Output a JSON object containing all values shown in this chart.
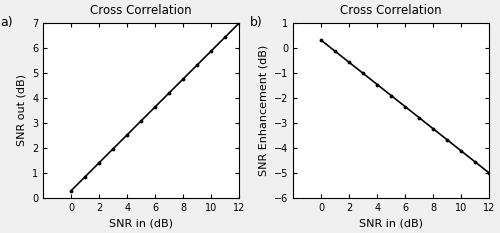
{
  "title": "Cross Correlation",
  "xlabel": "SNR in (dB)",
  "ylabel_a": "SNR out (dB)",
  "ylabel_b": "SNR Enhancement (dB)",
  "label_a": "a)",
  "label_b": "b)",
  "snr_in_min": -2,
  "snr_in_max": 12,
  "snr_out_ylim": [
    0,
    7
  ],
  "snr_enh_ylim": [
    -6,
    1
  ],
  "snr_in_ticks": [
    0,
    2,
    4,
    6,
    8,
    10,
    12
  ],
  "snr_out_yticks": [
    0,
    1,
    2,
    3,
    4,
    5,
    6,
    7
  ],
  "snr_enh_yticks": [
    -6,
    -5,
    -4,
    -3,
    -2,
    -1,
    0,
    1
  ],
  "dot_positions_x": [
    0,
    1,
    2,
    3,
    4,
    5,
    6,
    7,
    8,
    9,
    10,
    11,
    12
  ],
  "line_color": "#000000",
  "dot_color": "#000000",
  "background_color": "#f0f0f0",
  "axes_color": "#ffffff",
  "fig_width": 5.0,
  "fig_height": 2.33,
  "dpi": 100,
  "a_param": 1.15,
  "b_param": 0.08
}
